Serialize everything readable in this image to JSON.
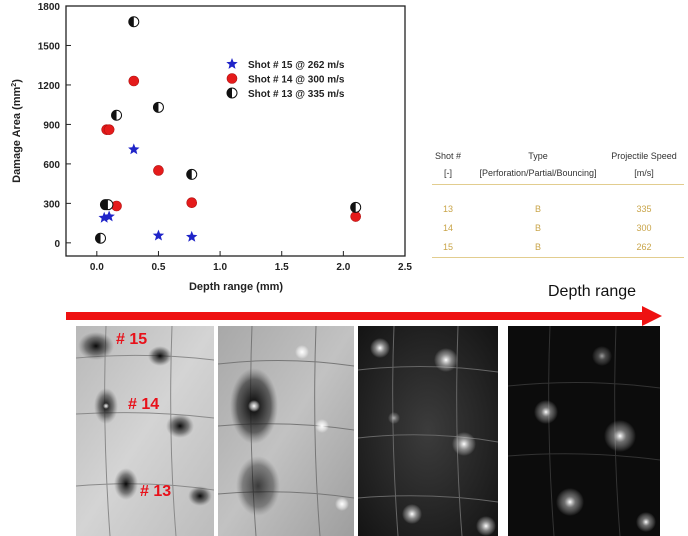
{
  "chart_data": {
    "type": "scatter",
    "title": "",
    "xlabel": "Depth range (mm)",
    "ylabel": "Damage Area (mm",
    "ylabel_sup": "2",
    "ylabel_end": ")",
    "xlim": [
      -0.25,
      2.5
    ],
    "ylim": [
      -100,
      1800
    ],
    "x_ticks": [
      "0.0",
      "0.5",
      "1.0",
      "1.5",
      "2.0",
      "2.5"
    ],
    "y_ticks": [
      "0",
      "300",
      "600",
      "900",
      "1200",
      "1500",
      "1800"
    ],
    "legend_position": "upper-right",
    "series": [
      {
        "name": "Shot # 15 @ 262 m/s",
        "marker": "star",
        "color": "#1f24c8",
        "points": [
          [
            0.06,
            190
          ],
          [
            0.1,
            200
          ],
          [
            0.3,
            710
          ],
          [
            0.5,
            55
          ],
          [
            0.77,
            45
          ]
        ]
      },
      {
        "name": "Shot # 14 @ 300 m/s",
        "marker": "circle",
        "color": "#e51b1b",
        "points": [
          [
            0.08,
            860
          ],
          [
            0.1,
            860
          ],
          [
            0.16,
            280
          ],
          [
            0.3,
            1230
          ],
          [
            0.5,
            550
          ],
          [
            0.77,
            305
          ],
          [
            2.1,
            200
          ]
        ]
      },
      {
        "name": "Shot # 13 @ 335 m/s",
        "marker": "half-circle",
        "color": "#111111",
        "points": [
          [
            0.03,
            35
          ],
          [
            0.07,
            290
          ],
          [
            0.09,
            290
          ],
          [
            0.16,
            970
          ],
          [
            0.3,
            1680
          ],
          [
            0.5,
            1030
          ],
          [
            0.77,
            520
          ],
          [
            2.1,
            270
          ]
        ]
      }
    ]
  },
  "table": {
    "headers": [
      {
        "line1": "Shot #",
        "line2": "[-]"
      },
      {
        "line1": "Type",
        "line2": "[Perforation/Partial/Bouncing]"
      },
      {
        "line1": "Projectile Speed",
        "line2": "[m/s]"
      }
    ],
    "rows": [
      {
        "shot": "13",
        "type": "B",
        "speed": "335"
      },
      {
        "shot": "14",
        "type": "B",
        "speed": "300"
      },
      {
        "shot": "15",
        "type": "B",
        "speed": "262"
      }
    ]
  },
  "arrow": {
    "label": "Depth range",
    "color": "#ee1111"
  },
  "panel_labels": [
    "# 15",
    "# 14",
    "# 13"
  ]
}
